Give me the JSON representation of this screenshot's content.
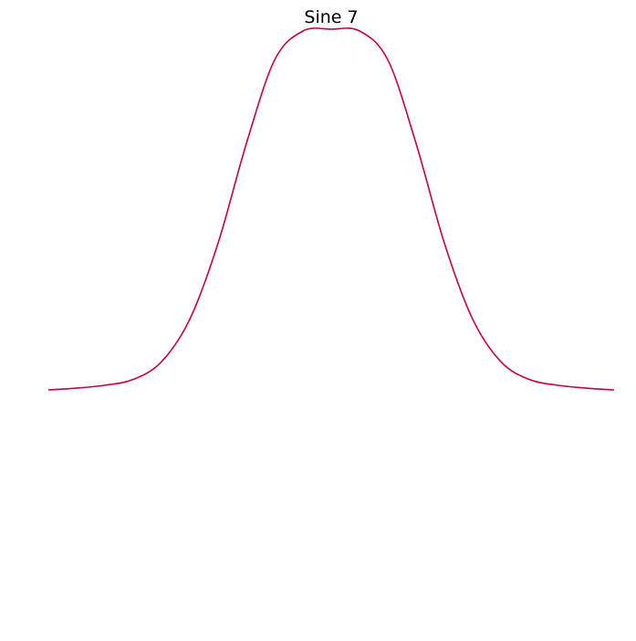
{
  "chart_data": {
    "type": "line",
    "title": "Sine 7",
    "xlabel": "",
    "ylabel": "",
    "axes_visible": false,
    "grid": false,
    "legend": "none",
    "xlim": [
      -3.0,
      3.0
    ],
    "ylim": [
      -1.0,
      1.0
    ],
    "series": [
      {
        "color": "#C8003C",
        "x": [
          -3.0,
          -2.7,
          -2.4,
          -2.1,
          -1.8,
          -1.5,
          -1.2,
          -0.9,
          -0.6,
          -0.3,
          0.0,
          0.3,
          0.6,
          0.9,
          1.2,
          1.5,
          1.8,
          2.1,
          2.4,
          2.7,
          3.0
        ],
        "y": [
          0.0,
          0.005,
          0.013,
          0.029,
          0.078,
          0.196,
          0.407,
          0.683,
          0.915,
          0.995,
          1.0,
          0.995,
          0.915,
          0.683,
          0.407,
          0.196,
          0.078,
          0.029,
          0.013,
          0.005,
          0.0
        ]
      }
    ]
  }
}
